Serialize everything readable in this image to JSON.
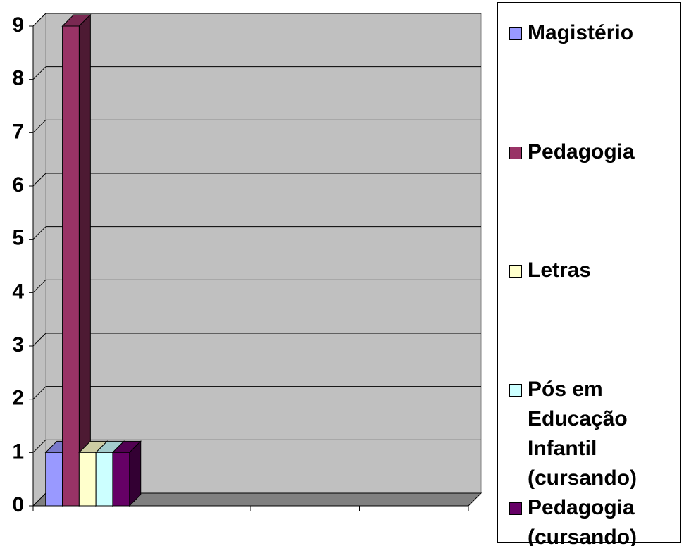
{
  "chart_data": {
    "type": "bar3d",
    "categories": [
      null,
      null,
      null,
      null
    ],
    "series": [
      {
        "name": "Magistério",
        "color": "#9999FF",
        "values": [
          1,
          null,
          null,
          null
        ]
      },
      {
        "name": "Pedagogia",
        "color": "#993366",
        "values": [
          9,
          null,
          null,
          null
        ]
      },
      {
        "name": "Letras",
        "color": "#FFFFCC",
        "values": [
          1,
          null,
          null,
          null
        ]
      },
      {
        "name": "Pós em Educação Infantil (cursando)",
        "color": "#CCFFFF",
        "values": [
          1,
          null,
          null,
          null
        ]
      },
      {
        "name": "Pedagogia (cursando)",
        "color": "#660066",
        "values": [
          1,
          null,
          null,
          null
        ]
      }
    ],
    "ylim": [
      0,
      9
    ],
    "yticks": [
      0,
      1,
      2,
      3,
      4,
      5,
      6,
      7,
      8,
      9
    ],
    "grid": true,
    "legend": "right"
  }
}
